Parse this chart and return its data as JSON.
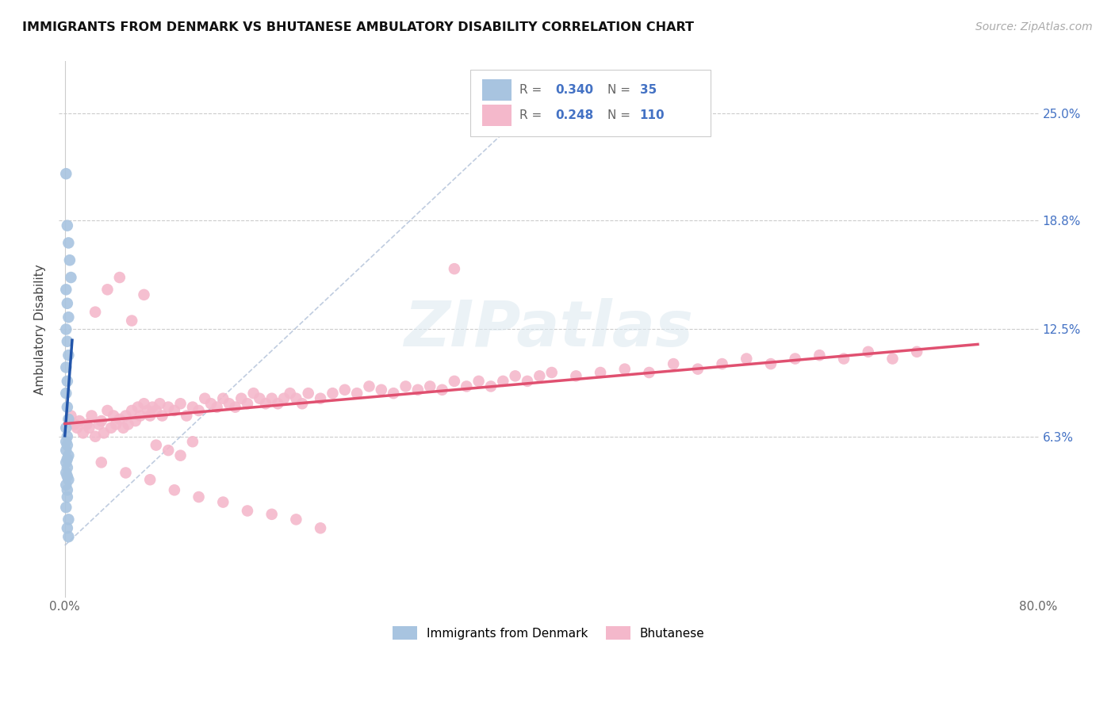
{
  "title": "IMMIGRANTS FROM DENMARK VS BHUTANESE AMBULATORY DISABILITY CORRELATION CHART",
  "source": "Source: ZipAtlas.com",
  "ylabel": "Ambulatory Disability",
  "xlim": [
    -0.005,
    0.8
  ],
  "ylim": [
    -0.03,
    0.28
  ],
  "yticks": [
    0.063,
    0.125,
    0.188,
    0.25
  ],
  "ytick_labels": [
    "6.3%",
    "12.5%",
    "18.8%",
    "25.0%"
  ],
  "xticks": [
    0.0,
    0.1,
    0.2,
    0.3,
    0.4,
    0.5,
    0.6,
    0.7,
    0.8
  ],
  "xtick_labels": [
    "0.0%",
    "",
    "",
    "",
    "",
    "",
    "",
    "",
    "80.0%"
  ],
  "series1_color": "#a8c4e0",
  "series2_color": "#f4b8cb",
  "trend1_color": "#2255aa",
  "trend2_color": "#e05070",
  "trend_line_dashed_color": "#b0c0d8",
  "watermark_text": "ZIPatlas",
  "legend_r1": "R = 0.340",
  "legend_n1": "N =  35",
  "legend_r2": "R = 0.248",
  "legend_n2": "N = 110",
  "denmark_x": [
    0.001,
    0.002,
    0.003,
    0.004,
    0.005,
    0.001,
    0.002,
    0.003,
    0.001,
    0.002,
    0.003,
    0.001,
    0.002,
    0.001,
    0.002,
    0.003,
    0.001,
    0.002,
    0.001,
    0.002,
    0.001,
    0.003,
    0.002,
    0.001,
    0.002,
    0.001,
    0.002,
    0.003,
    0.001,
    0.002,
    0.002,
    0.001,
    0.003,
    0.002,
    0.003
  ],
  "denmark_y": [
    0.215,
    0.185,
    0.175,
    0.165,
    0.155,
    0.148,
    0.14,
    0.132,
    0.125,
    0.118,
    0.11,
    0.103,
    0.095,
    0.088,
    0.08,
    0.073,
    0.068,
    0.063,
    0.06,
    0.058,
    0.055,
    0.052,
    0.05,
    0.048,
    0.045,
    0.042,
    0.04,
    0.038,
    0.035,
    0.032,
    0.028,
    0.022,
    0.015,
    0.01,
    0.005
  ],
  "bhutanese_x": [
    0.005,
    0.008,
    0.01,
    0.012,
    0.015,
    0.018,
    0.02,
    0.022,
    0.025,
    0.028,
    0.03,
    0.032,
    0.035,
    0.038,
    0.04,
    0.042,
    0.045,
    0.048,
    0.05,
    0.052,
    0.055,
    0.058,
    0.06,
    0.062,
    0.065,
    0.068,
    0.07,
    0.072,
    0.075,
    0.078,
    0.08,
    0.085,
    0.09,
    0.095,
    0.1,
    0.105,
    0.11,
    0.115,
    0.12,
    0.125,
    0.13,
    0.135,
    0.14,
    0.145,
    0.15,
    0.155,
    0.16,
    0.165,
    0.17,
    0.175,
    0.18,
    0.185,
    0.19,
    0.195,
    0.2,
    0.21,
    0.22,
    0.23,
    0.24,
    0.25,
    0.26,
    0.27,
    0.28,
    0.29,
    0.3,
    0.31,
    0.32,
    0.33,
    0.34,
    0.35,
    0.36,
    0.37,
    0.38,
    0.39,
    0.4,
    0.42,
    0.44,
    0.46,
    0.48,
    0.5,
    0.52,
    0.54,
    0.56,
    0.58,
    0.6,
    0.62,
    0.64,
    0.66,
    0.68,
    0.7,
    0.025,
    0.035,
    0.045,
    0.055,
    0.065,
    0.075,
    0.085,
    0.095,
    0.105,
    0.32,
    0.03,
    0.05,
    0.07,
    0.09,
    0.11,
    0.13,
    0.15,
    0.17,
    0.19,
    0.21
  ],
  "bhutanese_y": [
    0.075,
    0.07,
    0.068,
    0.072,
    0.065,
    0.07,
    0.068,
    0.075,
    0.063,
    0.07,
    0.072,
    0.065,
    0.078,
    0.068,
    0.075,
    0.07,
    0.073,
    0.068,
    0.075,
    0.07,
    0.078,
    0.072,
    0.08,
    0.075,
    0.082,
    0.078,
    0.075,
    0.08,
    0.078,
    0.082,
    0.075,
    0.08,
    0.078,
    0.082,
    0.075,
    0.08,
    0.078,
    0.085,
    0.082,
    0.08,
    0.085,
    0.082,
    0.08,
    0.085,
    0.082,
    0.088,
    0.085,
    0.082,
    0.085,
    0.082,
    0.085,
    0.088,
    0.085,
    0.082,
    0.088,
    0.085,
    0.088,
    0.09,
    0.088,
    0.092,
    0.09,
    0.088,
    0.092,
    0.09,
    0.092,
    0.09,
    0.095,
    0.092,
    0.095,
    0.092,
    0.095,
    0.098,
    0.095,
    0.098,
    0.1,
    0.098,
    0.1,
    0.102,
    0.1,
    0.105,
    0.102,
    0.105,
    0.108,
    0.105,
    0.108,
    0.11,
    0.108,
    0.112,
    0.108,
    0.112,
    0.135,
    0.148,
    0.155,
    0.13,
    0.145,
    0.058,
    0.055,
    0.052,
    0.06,
    0.16,
    0.048,
    0.042,
    0.038,
    0.032,
    0.028,
    0.025,
    0.02,
    0.018,
    0.015,
    0.01
  ]
}
